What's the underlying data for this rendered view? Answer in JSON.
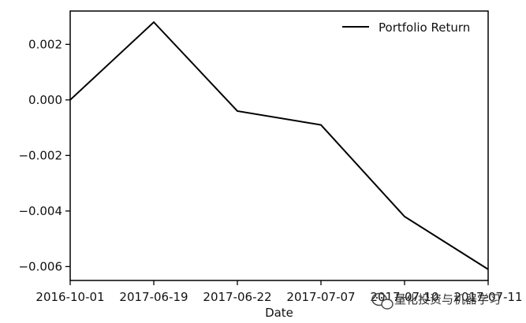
{
  "chart_data": {
    "type": "line",
    "title": "",
    "xlabel": "Date",
    "ylabel": "",
    "categories": [
      "2016-10-01",
      "2017-06-19",
      "2017-06-22",
      "2017-07-07",
      "2017-07-10",
      "2017-07-11"
    ],
    "series": [
      {
        "name": "Portfolio Return",
        "values": [
          0.0,
          0.0028,
          -0.0004,
          -0.0009,
          -0.0042,
          -0.0061
        ],
        "color": "#000000"
      }
    ],
    "ylim": [
      -0.0065,
      0.0032
    ],
    "yticks": [
      0.002,
      0.0,
      -0.002,
      -0.004,
      -0.006
    ],
    "ytick_labels": [
      "0.002",
      "0.000",
      "−0.002",
      "−0.004",
      "−0.006"
    ],
    "grid": false,
    "legend_position": "top-right"
  },
  "watermark": {
    "text": "量化投资与机器学习",
    "icon": "wechat-icon"
  }
}
